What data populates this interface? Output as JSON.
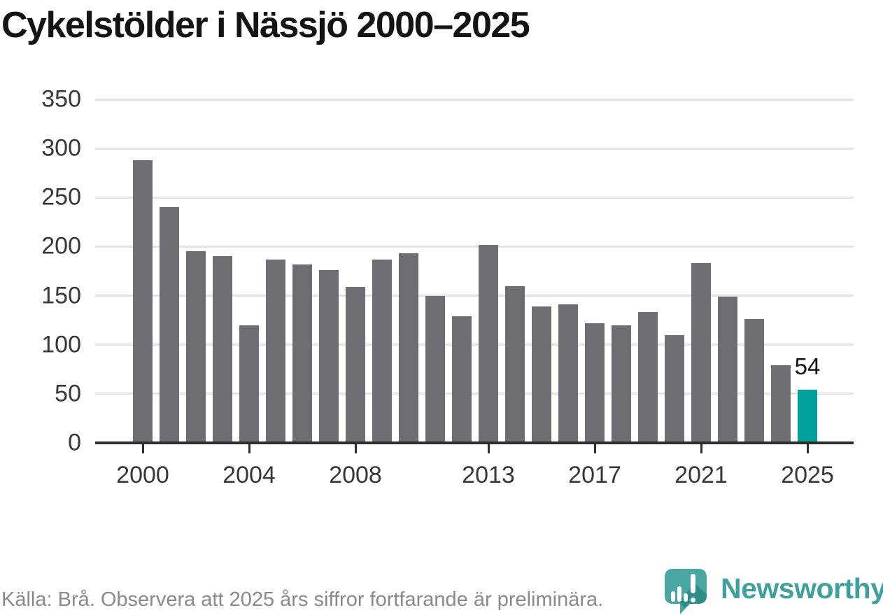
{
  "title": "Cykelstölder i Nässjö 2000–2025",
  "footer": {
    "source_text": "Källa: Brå. Observera att 2025 års siffror fortfarande är preliminära."
  },
  "logo": {
    "text": "Newsworthy",
    "icon": "newsworthy-speech-bubble-bar-chart-icon"
  },
  "colors": {
    "bar": "#6e6d74",
    "highlight": "#00a19b",
    "grid": "#e3e3e3",
    "axis": "#2e2e2e",
    "tick_label": "#373737",
    "title": "#141414",
    "footer_text": "#8a8a8a",
    "logo_teal": "#40a09c",
    "logo_icon_teal": "#4aa6a1",
    "logo_icon_shadow": "#2f8d89"
  },
  "chart_data": {
    "type": "bar",
    "title": "Cykelstölder i Nässjö 2000–2025",
    "x": [
      2000,
      2001,
      2002,
      2003,
      2004,
      2005,
      2006,
      2007,
      2008,
      2009,
      2010,
      2011,
      2012,
      2013,
      2014,
      2015,
      2016,
      2017,
      2018,
      2019,
      2020,
      2021,
      2022,
      2023,
      2024,
      2025
    ],
    "values": [
      288,
      240,
      195,
      190,
      120,
      187,
      182,
      176,
      159,
      187,
      193,
      150,
      129,
      202,
      160,
      139,
      141,
      122,
      120,
      133,
      110,
      183,
      149,
      126,
      79,
      54
    ],
    "highlight_year": 2025,
    "highlight_value_label": "54",
    "y_ticks": [
      0,
      50,
      100,
      150,
      200,
      250,
      300,
      350
    ],
    "x_ticks": [
      2000,
      2004,
      2008,
      2013,
      2017,
      2021,
      2025
    ],
    "ylim": [
      0,
      350
    ],
    "xlabel": "",
    "ylabel": "",
    "grid": "horizontal",
    "legend": "none"
  }
}
